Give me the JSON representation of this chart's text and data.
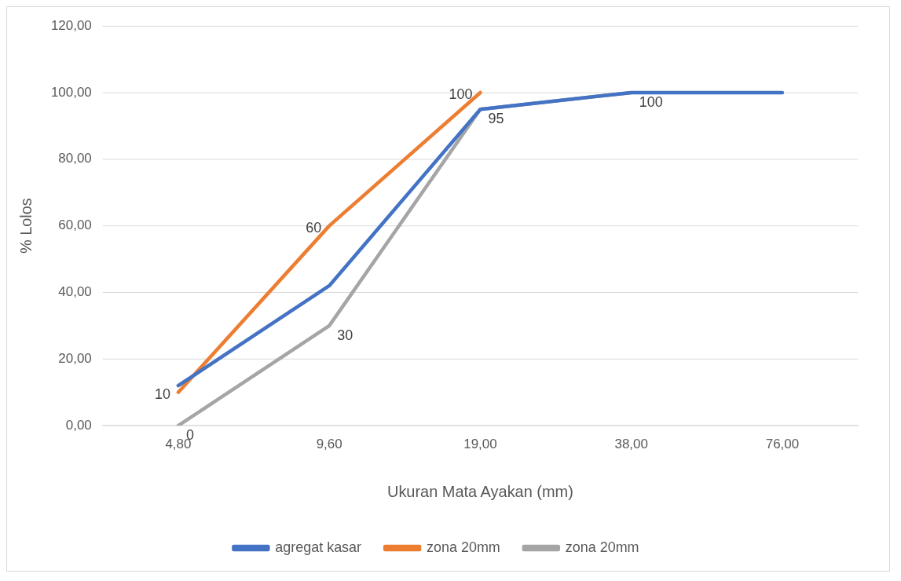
{
  "chart_data": {
    "type": "line",
    "xlabel": "Ukuran Mata Ayakan (mm)",
    "ylabel": "% Lolos",
    "categories": [
      "4,80",
      "9,60",
      "19,00",
      "38,00",
      "76,00"
    ],
    "series": [
      {
        "name": "agregat kasar",
        "color": "#4472c4",
        "values": [
          12,
          42,
          95,
          100,
          100
        ]
      },
      {
        "name": "zona 20mm",
        "color": "#ed7d31",
        "values": [
          10,
          60,
          100,
          null,
          null
        ],
        "value_labels": [
          "10",
          "60",
          "100",
          null,
          null
        ]
      },
      {
        "name": "zona 20mm",
        "color": "#a5a5a5",
        "values": [
          0,
          30,
          95,
          100,
          null
        ],
        "value_labels": [
          "0",
          "30",
          "95",
          "100",
          null
        ]
      }
    ],
    "ylim": [
      0,
      120
    ],
    "yticks": [
      {
        "value": 0,
        "label": "0,00"
      },
      {
        "value": 20,
        "label": "20,00"
      },
      {
        "value": 40,
        "label": "40,00"
      },
      {
        "value": 60,
        "label": "60,00"
      },
      {
        "value": 80,
        "label": "80,00"
      },
      {
        "value": 100,
        "label": "100,00"
      },
      {
        "value": 120,
        "label": "120,00"
      }
    ],
    "grid": "y",
    "legend": "bottom",
    "marker": "none",
    "line_style": "solid"
  }
}
